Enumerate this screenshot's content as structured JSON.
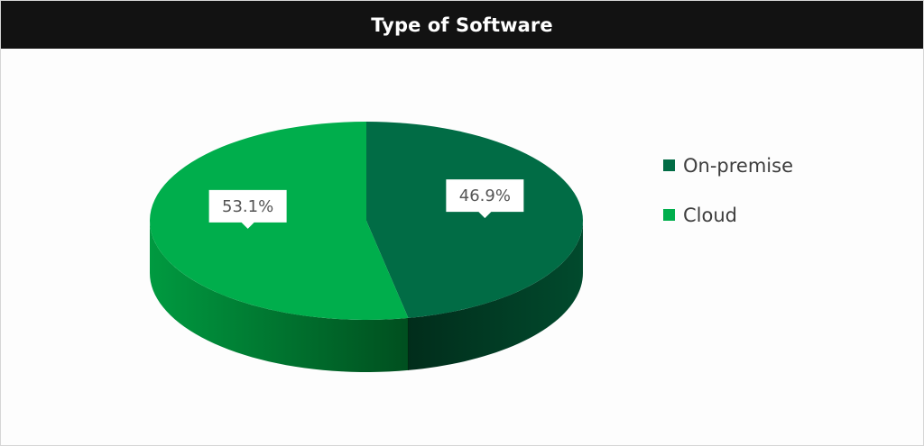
{
  "chart_data": {
    "type": "pie",
    "title": "Type of Software",
    "categories": [
      "On-premise",
      "Cloud"
    ],
    "values": [
      46.9,
      53.1
    ],
    "data_labels": [
      "46.9%",
      "53.1%"
    ],
    "colors": [
      "#016c45",
      "#00ae4c"
    ],
    "side_colors": [
      "#013b23",
      "#006528"
    ],
    "legend_position": "right",
    "style": "3d-pie"
  }
}
